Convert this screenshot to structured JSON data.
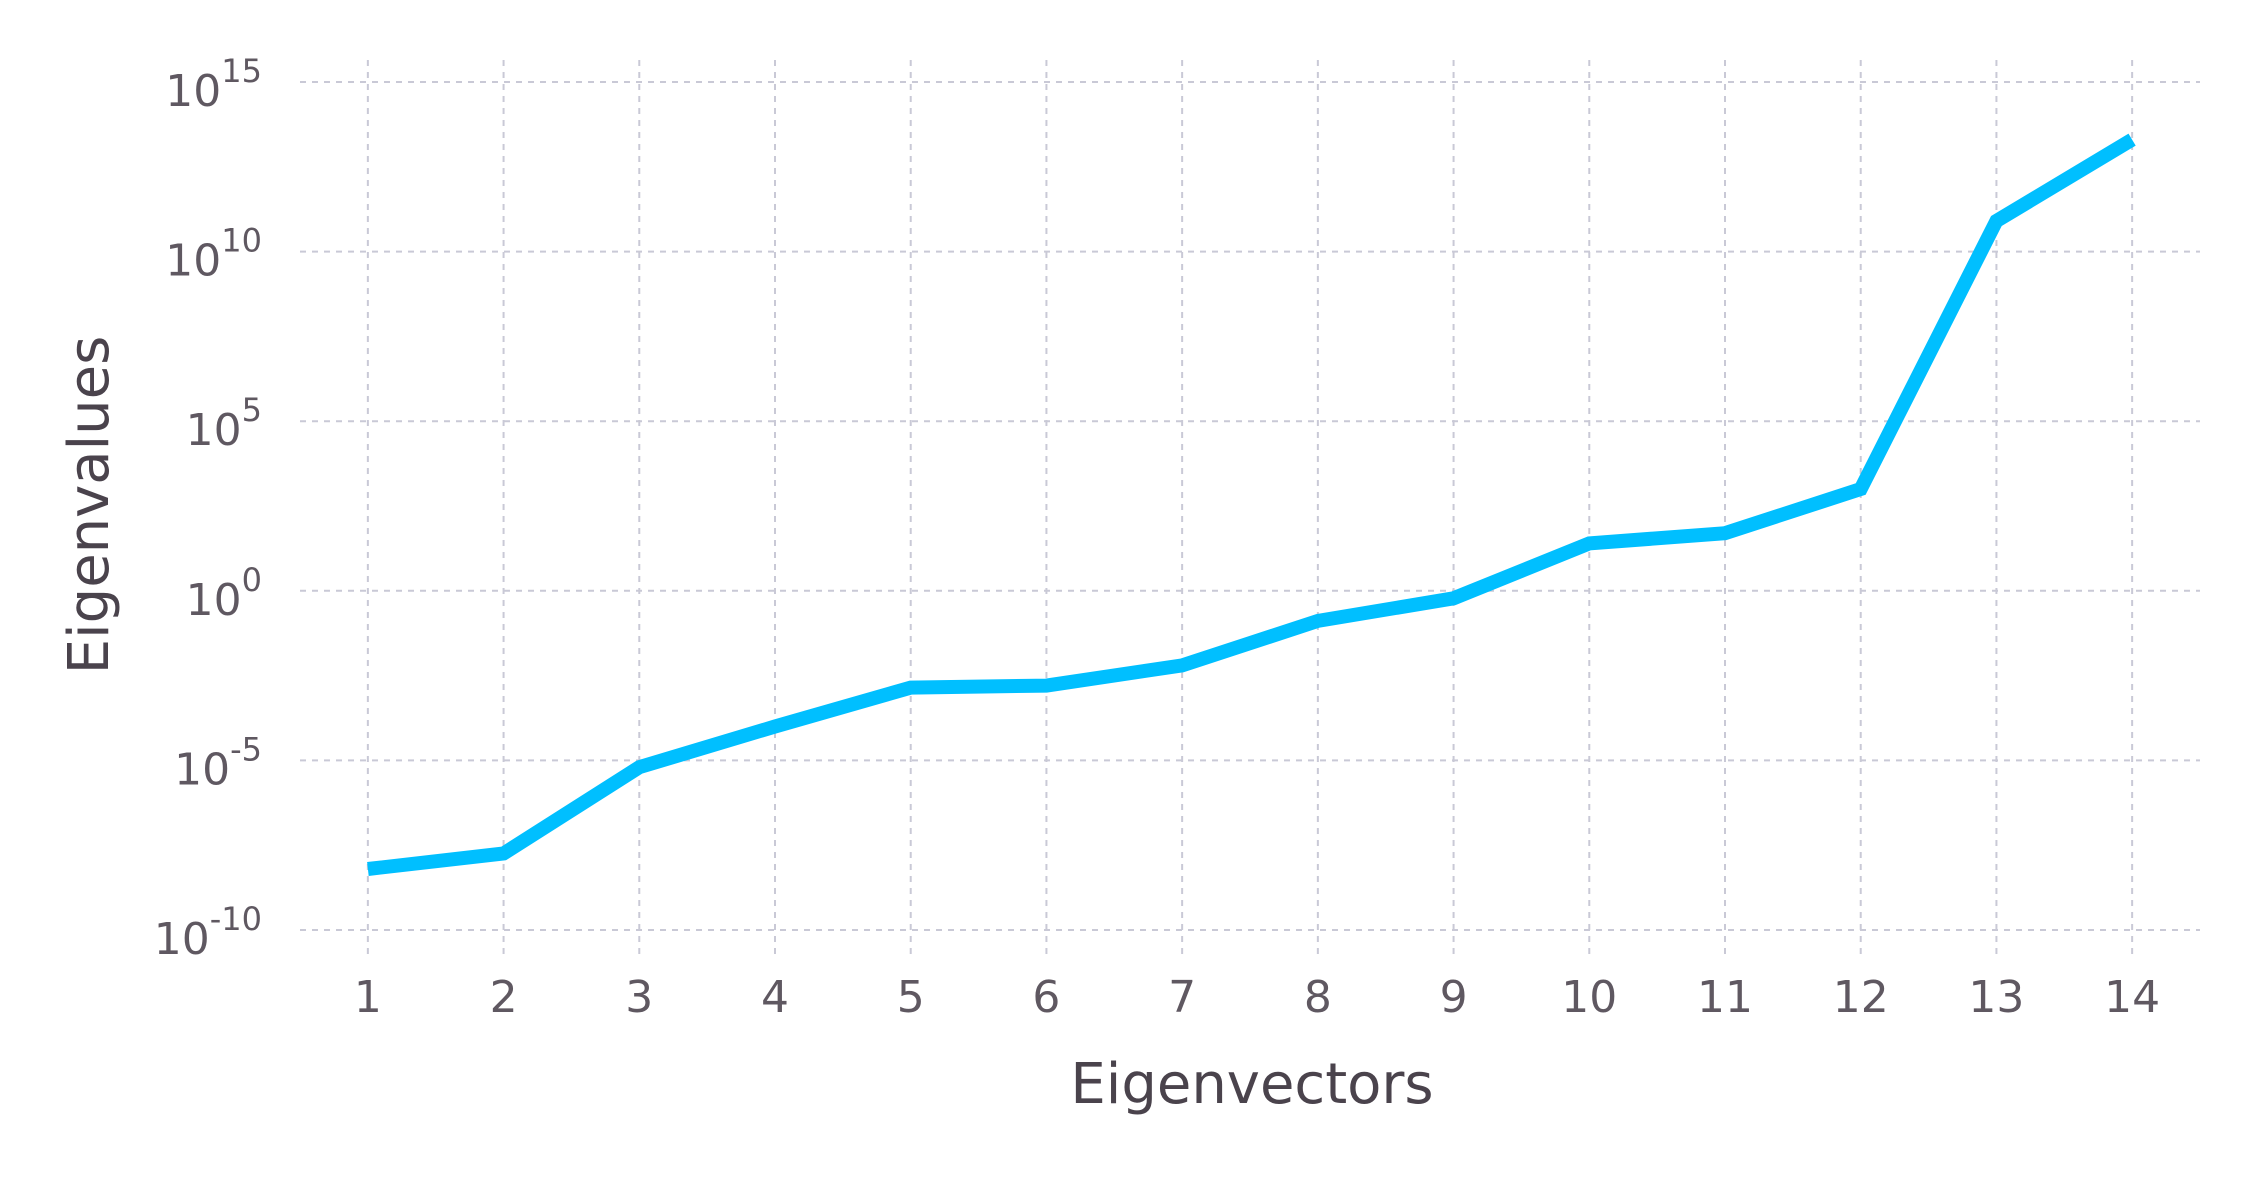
{
  "chart_data": {
    "type": "line",
    "title": "",
    "xlabel": "Eigenvectors",
    "ylabel": "Eigenvalues",
    "x": [
      1,
      2,
      3,
      4,
      5,
      6,
      7,
      8,
      9,
      10,
      11,
      12,
      13,
      14
    ],
    "series": [
      {
        "values": [
          6.3e-09,
          1.8e-08,
          6.3e-06,
          0.0001,
          0.0014,
          0.0016,
          0.0063,
          0.13,
          0.6,
          25,
          50,
          1000,
          80000000000.0,
          20000000000000.0
        ],
        "color": "#00bfff"
      }
    ],
    "yscale": "log",
    "ylim": [
      1e-10,
      1000000000000000.0
    ],
    "xlim": [
      0.5,
      14.5
    ],
    "yticks": [
      {
        "base": "10",
        "exp": "-10"
      },
      {
        "base": "10",
        "exp": "-5"
      },
      {
        "base": "10",
        "exp": "0"
      },
      {
        "base": "10",
        "exp": "5"
      },
      {
        "base": "10",
        "exp": "10"
      },
      {
        "base": "10",
        "exp": "15"
      }
    ],
    "xticks": [
      "1",
      "2",
      "3",
      "4",
      "5",
      "6",
      "7",
      "8",
      "9",
      "10",
      "11",
      "12",
      "13",
      "14"
    ],
    "grid": true,
    "legend": "none"
  }
}
